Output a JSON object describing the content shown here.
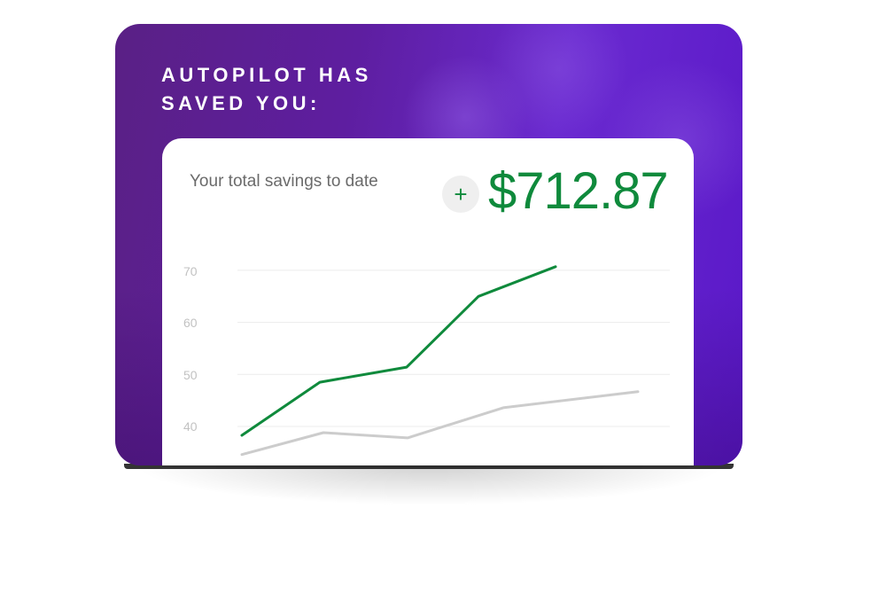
{
  "banner": {
    "headline_line1": "AUTOPILOT HAS",
    "headline_line2": "SAVED YOU:"
  },
  "card": {
    "label": "Your total savings to date",
    "plus_icon": "+",
    "amount": "$712.87",
    "accent_color": "#0f8a3c"
  },
  "chart_data": {
    "type": "line",
    "grid": true,
    "ylim": [
      33,
      72
    ],
    "yticks": [
      "70",
      "60",
      "50",
      "40"
    ],
    "series": [
      {
        "color": "#0f8a3c",
        "values": [
          38.3,
          48.5,
          51.4,
          65.0,
          70.7
        ]
      },
      {
        "color": "#cccccc",
        "values": [
          34.6,
          38.8,
          37.8,
          43.6,
          46.7
        ]
      }
    ]
  }
}
